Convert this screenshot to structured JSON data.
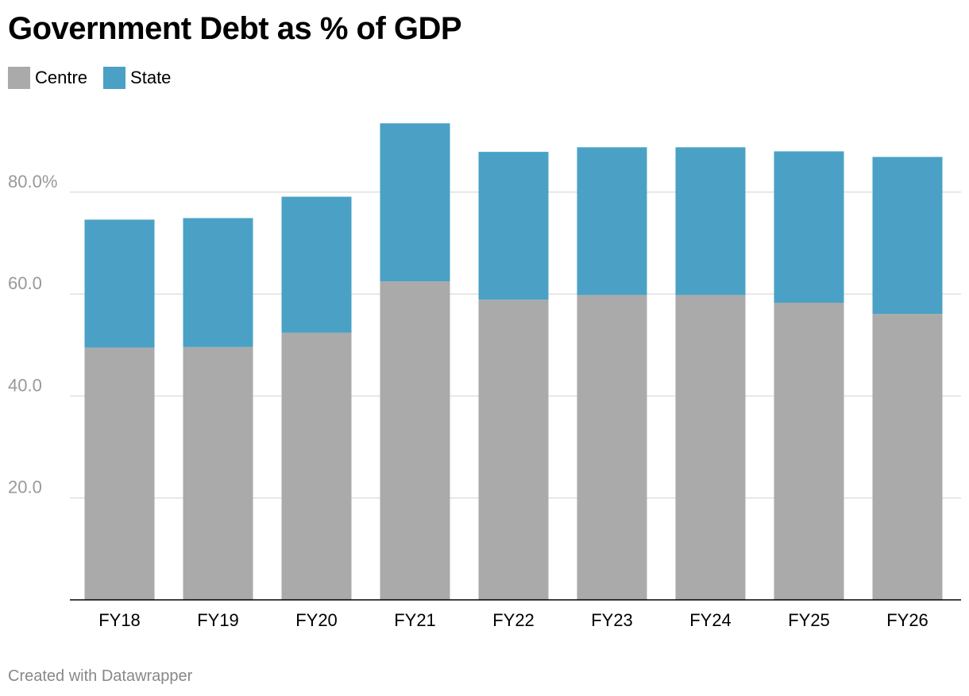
{
  "title": "Government Debt as % of GDP",
  "footer": "Created with Datawrapper",
  "colors": {
    "centre": "#aaaaaa",
    "state": "#4aa1c5",
    "grid": "#e0e0e0",
    "tick_text": "#999999",
    "axis": "#000000"
  },
  "chart_data": {
    "type": "bar",
    "stacked": true,
    "title": "Government Debt as % of GDP",
    "categories": [
      "FY18",
      "FY19",
      "FY20",
      "FY21",
      "FY22",
      "FY23",
      "FY24",
      "FY25",
      "FY26"
    ],
    "series": [
      {
        "name": "Centre",
        "values": [
          49.5,
          49.6,
          52.4,
          62.5,
          58.9,
          59.8,
          59.8,
          58.3,
          56.1
        ]
      },
      {
        "name": "State",
        "values": [
          25.1,
          25.3,
          26.7,
          31.0,
          29.0,
          29.0,
          29.0,
          29.7,
          30.8
        ]
      }
    ],
    "yticks": [
      20,
      40,
      60,
      80
    ],
    "ytick_labels": [
      "20.0",
      "40.0",
      "60.0",
      "80.0%"
    ],
    "ylim": [
      0,
      95
    ],
    "grid": true,
    "legend_position": "top-left",
    "xlabel": "",
    "ylabel": ""
  }
}
